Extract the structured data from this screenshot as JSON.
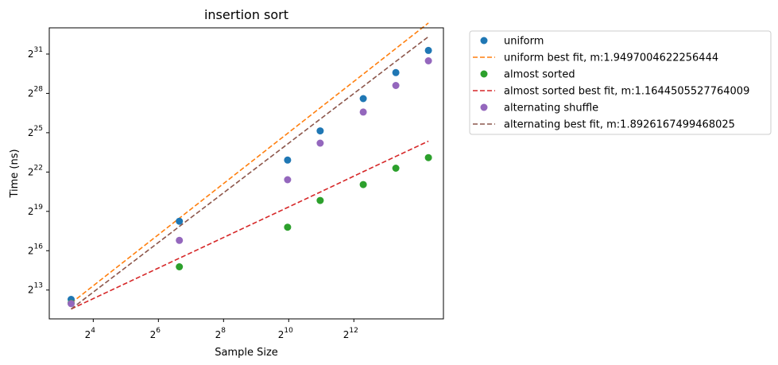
{
  "chart_data": {
    "type": "scatter",
    "title": "insertion sort",
    "xlabel": "Sample Size",
    "ylabel": "Time (ns)",
    "scale": {
      "x": "log2",
      "y": "log2"
    },
    "xlim_log2": [
      2.65,
      14.75
    ],
    "ylim_log2": [
      10.8,
      33.0
    ],
    "x_ticks": [
      {
        "base": "2",
        "exp": "4",
        "log2": 4
      },
      {
        "base": "2",
        "exp": "6",
        "log2": 6
      },
      {
        "base": "2",
        "exp": "8",
        "log2": 8
      },
      {
        "base": "2",
        "exp": "10",
        "log2": 10
      },
      {
        "base": "2",
        "exp": "12",
        "log2": 12
      }
    ],
    "y_ticks": [
      {
        "base": "2",
        "exp": "13",
        "log2": 13
      },
      {
        "base": "2",
        "exp": "16",
        "log2": 16
      },
      {
        "base": "2",
        "exp": "19",
        "log2": 19
      },
      {
        "base": "2",
        "exp": "22",
        "log2": 22
      },
      {
        "base": "2",
        "exp": "25",
        "log2": 25
      },
      {
        "base": "2",
        "exp": "28",
        "log2": 28
      },
      {
        "base": "2",
        "exp": "31",
        "log2": 31
      }
    ],
    "x": [
      10,
      100,
      1000,
      2000,
      5000,
      10000,
      20000
    ],
    "series": [
      {
        "name": "uniform",
        "kind": "points",
        "color": "#1f77b4",
        "values": [
          5000,
          311000,
          7900000,
          37000000,
          204000000,
          805000000,
          2600000000
        ]
      },
      {
        "name": "uniform best fit, m:1.9497004622256444",
        "kind": "fit",
        "color": "#ff7f0e",
        "values": [
          4100,
          365000,
          32500000,
          125000000,
          744000000,
          2880000000,
          11100000000
        ]
      },
      {
        "name": "almost sorted",
        "kind": "points",
        "color": "#2ca02c",
        "values": [
          4100,
          28000,
          227000,
          935000,
          2160000,
          5150000,
          9000000
        ]
      },
      {
        "name": "almost sorted best fit, m:1.1644505527764009",
        "kind": "fit",
        "color": "#d62728",
        "values": [
          3000,
          44000,
          645000,
          1450000,
          4280000,
          9600000,
          21500000
        ]
      },
      {
        "name": "alternating shuffle",
        "kind": "points",
        "color": "#9467bd",
        "values": [
          4000,
          113000,
          2800000,
          19300000,
          100000000,
          407000000,
          1500000000
        ]
      },
      {
        "name": "alternating best fit, m:1.8926167499468025",
        "kind": "fit",
        "color": "#8c564b",
        "values": [
          3000,
          236000,
          18500000,
          68700000,
          389000000,
          1450000000,
          5380000000
        ]
      }
    ],
    "grid": false,
    "legend": "outside-right"
  }
}
